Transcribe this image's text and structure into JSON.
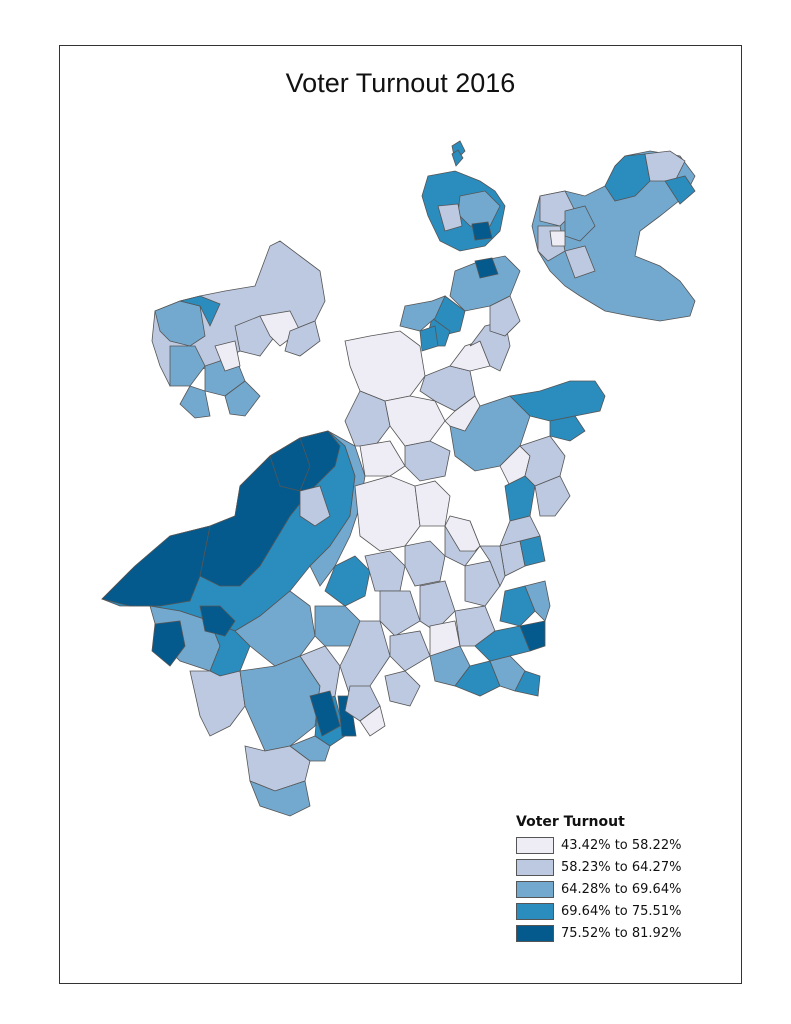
{
  "map": {
    "title": "Voter Turnout 2016"
  },
  "legend": {
    "title": "Voter Turnout",
    "classes": [
      {
        "label": "43.42% to 58.22%",
        "color": "#eeedf5"
      },
      {
        "label": "58.23% to 64.27%",
        "color": "#bdc9e1"
      },
      {
        "label": "64.28% to 69.64%",
        "color": "#74a9cf"
      },
      {
        "label": "69.64% to 75.51%",
        "color": "#2b8cbe"
      },
      {
        "label": "75.52% to 81.92%",
        "color": "#045a8d"
      }
    ]
  },
  "colors": {
    "outline": "#555555",
    "frame": "#333333"
  }
}
